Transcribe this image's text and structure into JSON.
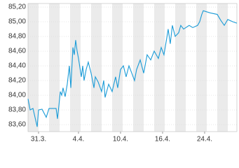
{
  "chart_data": {
    "type": "line",
    "x": [
      -1,
      -0.8,
      -0.53,
      -0.13,
      0,
      0.33,
      0.73,
      1,
      1.33,
      1.67,
      1.8,
      1.93,
      2.07,
      2.2,
      2.33,
      2.53,
      2.73,
      2.93,
      3.07,
      3.27,
      3.4,
      3.53,
      3.67,
      3.8,
      4.07,
      4.2,
      4.33,
      4.53,
      4.73,
      5,
      5.27,
      5.4,
      5.67,
      6,
      6.2,
      6.33,
      6.67,
      7,
      7.33,
      7.53,
      7.8,
      8.07,
      8.33,
      8.6,
      8.87,
      9.13,
      9.33,
      9.67,
      10,
      10.33,
      10.67,
      11,
      11.4,
      11.67,
      11.93,
      12.2,
      12.33,
      12.53,
      12.73,
      13,
      13.33,
      13.53,
      13.8,
      14.33,
      14.67,
      15.13,
      15.33,
      15.53,
      15.67,
      16.33,
      17,
      17.33,
      17.67,
      18,
      18.47,
      18.87
    ],
    "series": [
      {
        "color": "#1a9bd7",
        "values": [
          83.95,
          83.8,
          83.82,
          83.57,
          83.8,
          83.81,
          83.7,
          83.82,
          83.82,
          83.82,
          83.68,
          83.85,
          84.05,
          84.0,
          84.1,
          83.98,
          84.15,
          84.4,
          84.1,
          84.65,
          84.55,
          84.75,
          84.6,
          84.5,
          84.25,
          84.4,
          84.2,
          84.35,
          84.45,
          84.3,
          84.1,
          84.25,
          84.18,
          84.05,
          84.2,
          83.97,
          84.15,
          84.05,
          84.25,
          84.1,
          84.35,
          84.4,
          84.25,
          84.4,
          84.3,
          84.2,
          84.35,
          84.48,
          84.3,
          84.55,
          84.48,
          84.6,
          84.5,
          84.65,
          84.55,
          84.78,
          84.9,
          84.7,
          84.95,
          84.8,
          84.85,
          84.95,
          84.9,
          84.95,
          84.92,
          84.95,
          85.0,
          85.1,
          85.15,
          85.12,
          85.1,
          85.02,
          84.95,
          85.03,
          85.0,
          84.98
        ]
      }
    ],
    "xlim": [
      -1,
      18.87
    ],
    "xticks": [
      {
        "value": 0,
        "label": "31.3."
      },
      {
        "value": 3.8,
        "label": "4.4."
      },
      {
        "value": 7.8,
        "label": "10.4."
      },
      {
        "value": 11.8,
        "label": "16.4."
      },
      {
        "value": 15.8,
        "label": "24.4."
      }
    ],
    "ylim": [
      83.505,
      85.248
    ],
    "yticks": [
      {
        "value": 83.6,
        "label": "83,60"
      },
      {
        "value": 83.8,
        "label": "83,80"
      },
      {
        "value": 84.0,
        "label": "84,00"
      },
      {
        "value": 84.2,
        "label": "84,20"
      },
      {
        "value": 84.4,
        "label": "84,40"
      },
      {
        "value": 84.6,
        "label": "84,60"
      },
      {
        "value": 84.8,
        "label": "84,80"
      },
      {
        "value": 85.0,
        "label": "85,00"
      },
      {
        "value": 85.2,
        "label": "85,20"
      }
    ],
    "grid": true
  }
}
